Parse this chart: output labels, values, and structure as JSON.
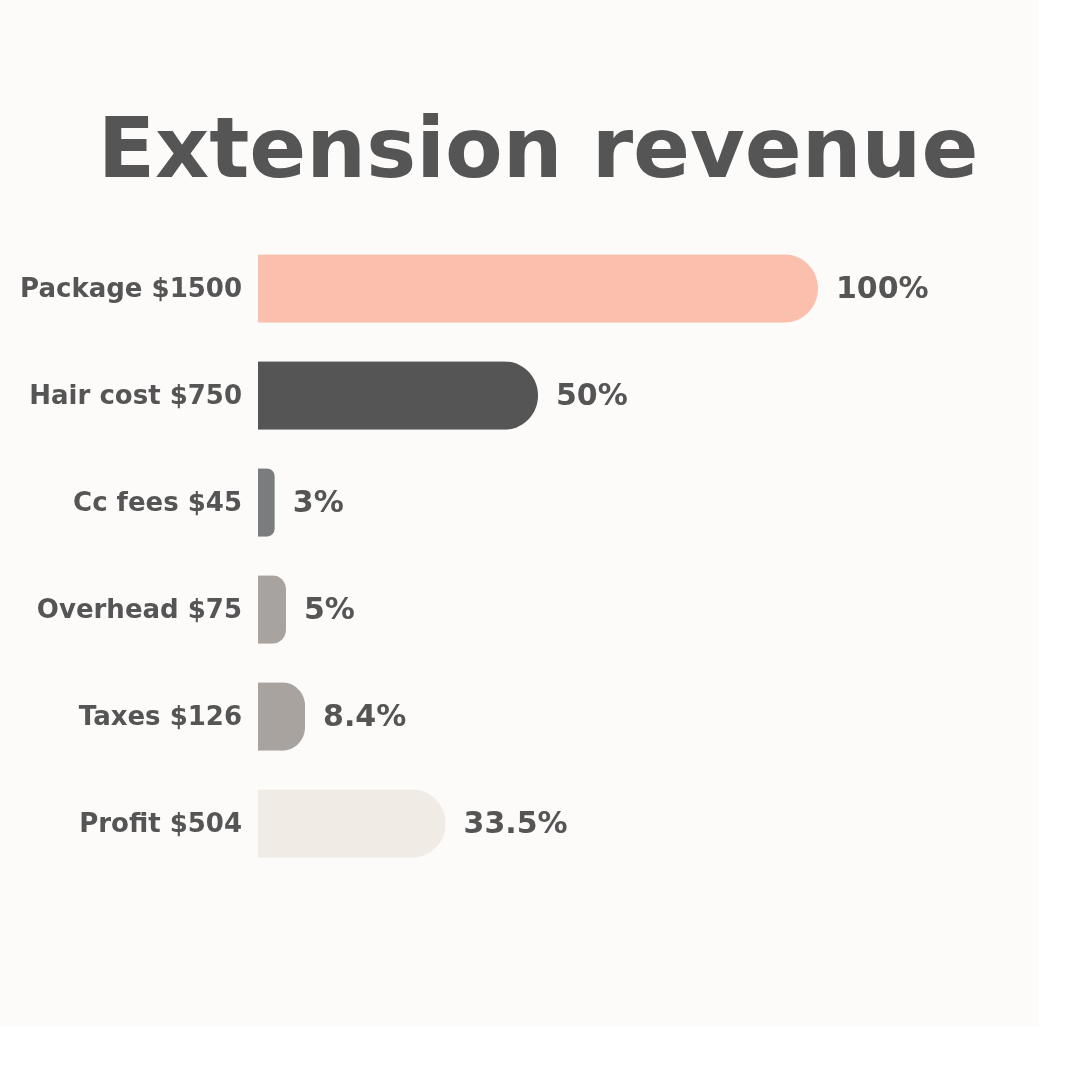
{
  "chart_data": {
    "type": "bar",
    "orientation": "horizontal",
    "title": "Extension revenue",
    "categories": [
      "Package $1500",
      "Hair cost $750",
      "Cc fees $45",
      "Overhead $75",
      "Taxes $126",
      "Profit $504"
    ],
    "values": [
      100,
      50,
      3,
      5,
      8.4,
      33.5
    ],
    "colors": [
      "#fbc0ad",
      "#555555",
      "#7a7d7d",
      "#a8a39f",
      "#a8a39f",
      "#f1ebe5"
    ],
    "value_labels": [
      "100%",
      "50%",
      "3%",
      "5%",
      "8.4%",
      "33.5%"
    ]
  }
}
